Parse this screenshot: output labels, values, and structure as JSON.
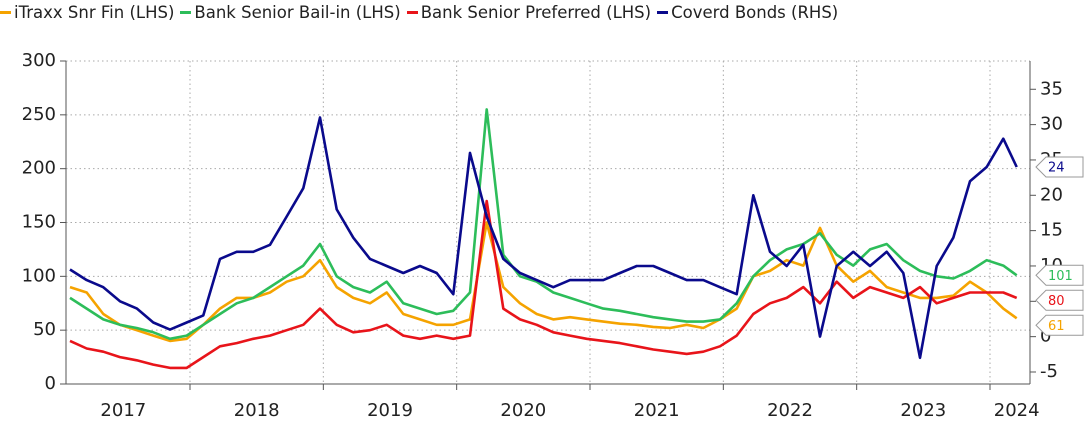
{
  "chart_data": {
    "type": "line",
    "x": [
      2017.1,
      2017.225,
      2017.35,
      2017.475,
      2017.6,
      2017.725,
      2017.85,
      2017.975,
      2018.1,
      2018.225,
      2018.35,
      2018.475,
      2018.6,
      2018.725,
      2018.85,
      2018.975,
      2019.1,
      2019.225,
      2019.35,
      2019.475,
      2019.6,
      2019.725,
      2019.85,
      2019.975,
      2020.1,
      2020.225,
      2020.35,
      2020.475,
      2020.6,
      2020.725,
      2020.85,
      2020.975,
      2021.1,
      2021.225,
      2021.35,
      2021.475,
      2021.6,
      2021.725,
      2021.85,
      2021.975,
      2022.1,
      2022.225,
      2022.35,
      2022.475,
      2022.6,
      2022.725,
      2022.85,
      2022.975,
      2023.1,
      2023.225,
      2023.35,
      2023.475,
      2023.6,
      2023.725,
      2023.85,
      2023.975,
      2024.1,
      2024.2
    ],
    "series": [
      {
        "name": "iTraxx Snr Fin (LHS)",
        "color": "#f5a300",
        "values": [
          90,
          85,
          65,
          55,
          50,
          45,
          40,
          42,
          55,
          70,
          80,
          80,
          85,
          95,
          100,
          115,
          90,
          80,
          75,
          85,
          65,
          60,
          55,
          55,
          60,
          150,
          90,
          75,
          65,
          60,
          62,
          60,
          58,
          56,
          55,
          53,
          52,
          55,
          52,
          60,
          70,
          100,
          105,
          115,
          110,
          145,
          110,
          95,
          105,
          90,
          85,
          80,
          80,
          82,
          95,
          85,
          70,
          61
        ]
      },
      {
        "name": "Bank Senior Bail-in (LHS)",
        "color": "#2dbd5a",
        "values": [
          80,
          70,
          60,
          55,
          52,
          48,
          42,
          45,
          55,
          65,
          75,
          80,
          90,
          100,
          110,
          130,
          100,
          90,
          85,
          95,
          75,
          70,
          65,
          68,
          85,
          255,
          120,
          100,
          95,
          85,
          80,
          75,
          70,
          68,
          65,
          62,
          60,
          58,
          58,
          60,
          75,
          100,
          115,
          125,
          130,
          140,
          120,
          110,
          125,
          130,
          115,
          105,
          100,
          98,
          105,
          115,
          110,
          101
        ]
      },
      {
        "name": "Bank Senior Preferred (LHS)",
        "color": "#e8141a",
        "values": [
          40,
          33,
          30,
          25,
          22,
          18,
          15,
          15,
          25,
          35,
          38,
          42,
          45,
          50,
          55,
          70,
          55,
          48,
          50,
          55,
          45,
          42,
          45,
          42,
          45,
          170,
          70,
          60,
          55,
          48,
          45,
          42,
          40,
          38,
          35,
          32,
          30,
          28,
          30,
          35,
          45,
          65,
          75,
          80,
          90,
          75,
          95,
          80,
          90,
          85,
          80,
          90,
          75,
          80,
          85,
          85,
          85,
          80
        ]
      },
      {
        "name": "Coverd Bonds (RHS)",
        "color": "#0a0a8c",
        "axis": "y2",
        "values": [
          9.5,
          8,
          7,
          5,
          4,
          2,
          1,
          2,
          3,
          11,
          12,
          12,
          13,
          17,
          21,
          31,
          18,
          14,
          11,
          10,
          9,
          10,
          9,
          6,
          26,
          17,
          11,
          9,
          8,
          7,
          8,
          8,
          8,
          9,
          10,
          10,
          9,
          8,
          8,
          7,
          6,
          20,
          12,
          10,
          13,
          0,
          10,
          12,
          10,
          12,
          9,
          -3,
          10,
          14,
          22,
          24,
          28,
          24
        ]
      }
    ],
    "xlim": [
      2017.07,
      2024.3
    ],
    "xticks": [
      {
        "value": 2017.5,
        "label": "2017"
      },
      {
        "value": 2018.5,
        "label": "2018"
      },
      {
        "value": 2019.5,
        "label": "2019"
      },
      {
        "value": 2020.5,
        "label": "2020"
      },
      {
        "value": 2021.5,
        "label": "2021"
      },
      {
        "value": 2022.5,
        "label": "2022"
      },
      {
        "value": 2023.5,
        "label": "2023"
      },
      {
        "value": 2024.2,
        "label": "2024"
      }
    ],
    "xgrid": [
      2018,
      2019,
      2020,
      2021,
      2022,
      2023,
      2024
    ],
    "ylim": [
      0,
      300
    ],
    "yticks": [
      0,
      50,
      100,
      150,
      200,
      250,
      300
    ],
    "y2lim": [
      -6.7,
      39
    ],
    "y2ticks": [
      -5,
      0,
      5,
      10,
      15,
      20,
      25,
      30,
      35
    ],
    "grid": true
  }
}
